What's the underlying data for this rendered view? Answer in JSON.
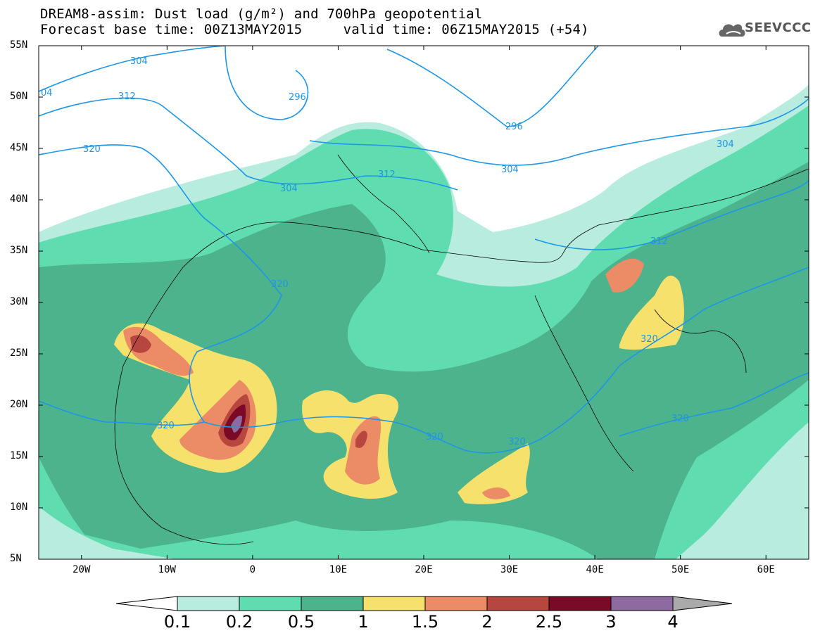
{
  "header": {
    "line1": "DREAM8-assim: Dust load (g/m²) and 700hPa geopotential",
    "line2": "Forecast base time: 00Z13MAY2015     valid time: 06Z15MAY2015 (+54)"
  },
  "logo": {
    "text": "SEEVCCC",
    "icon": "cloud-logo-icon"
  },
  "map": {
    "lon_range": [
      -25,
      65
    ],
    "lat_range": [
      5,
      55
    ],
    "lat_labels": [
      "55N",
      "50N",
      "45N",
      "40N",
      "35N",
      "30N",
      "25N",
      "20N",
      "15N",
      "10N",
      "5N"
    ],
    "lon_labels": [
      "20W",
      "10W",
      "0",
      "10E",
      "20E",
      "30E",
      "40E",
      "50E",
      "60E"
    ],
    "contour_labels": [
      "304",
      "04",
      "312",
      "296",
      "320",
      "304",
      "312",
      "296",
      "304",
      "304",
      "312",
      "320",
      "320",
      "320",
      "320",
      "320",
      "320"
    ]
  },
  "colorbar": {
    "levels": [
      "0.1",
      "0.2",
      "0.5",
      "1",
      "1.5",
      "2",
      "2.5",
      "3",
      "4"
    ],
    "colors": [
      "#b7ecdf",
      "#60dcb1",
      "#4cb38d",
      "#f5e16c",
      "#eb8c66",
      "#b7463e",
      "#7b0a26",
      "#8d6aa0"
    ]
  },
  "colors": {
    "contour": "#1e96e6",
    "coast": "#000000"
  }
}
